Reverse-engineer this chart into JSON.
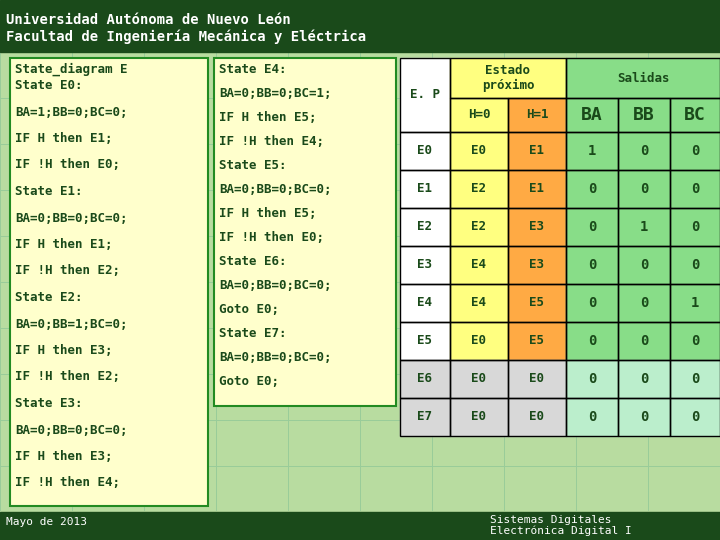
{
  "header_line1": "Universidad Autónoma de Nuevo León",
  "header_line2": "Facultad de Ingeniería Mecánica y Eléctrica",
  "header_bg": "#1a4a1a",
  "header_text_color": "#ffffff",
  "bg_color": "#b8dca0",
  "footer_line1": "Sistemas Digitales",
  "footer_line2": "Electrónica Digital I",
  "footer_date": "Mayo de 2013",
  "left_box_title": "State_diagram E",
  "left_box_lines": [
    "State E0:",
    "BA=1;BB=0;BC=0;",
    "IF H then E1;",
    "IF !H then E0;",
    "State E1:",
    "BA=0;BB=0;BC=0;",
    "IF H then E1;",
    "IF !H then E2;",
    "State E2:",
    "BA=0;BB=1;BC=0;",
    "IF H then E3;",
    "IF !H then E2;",
    "State E3:",
    "BA=0;BB=0;BC=0;",
    "IF H then E3;",
    "IF !H then E4;"
  ],
  "mid_box_lines": [
    "State E4:",
    "BA=0;BB=0;BC=1;",
    "IF H then E5;",
    "IF !H then E4;",
    "State E5:",
    "BA=0;BB=0;BC=0;",
    "IF H then E5;",
    "IF !H then E0;",
    "State E6:",
    "BA=0;BB=0;BC=0;",
    "Goto E0;",
    "State E7:",
    "BA=0;BB=0;BC=0;",
    "Goto E0;"
  ],
  "left_box_bg": "#ffffcc",
  "left_box_border": "#228B22",
  "table_ep_header": "E. P",
  "table_estado_header": "Estado\npróximo",
  "table_salidas_header": "Salidas",
  "table_h0_header": "H=0",
  "table_h1_header": "H=1",
  "table_ba_header": "BA",
  "table_bb_header": "BB",
  "table_bc_header": "BC",
  "table_rows": [
    [
      "E0",
      "E0",
      "E1",
      "1",
      "0",
      "0"
    ],
    [
      "E1",
      "E2",
      "E1",
      "0",
      "0",
      "0"
    ],
    [
      "E2",
      "E2",
      "E3",
      "0",
      "1",
      "0"
    ],
    [
      "E3",
      "E4",
      "E3",
      "0",
      "0",
      "0"
    ],
    [
      "E4",
      "E4",
      "E5",
      "0",
      "0",
      "1"
    ],
    [
      "E5",
      "E0",
      "E5",
      "0",
      "0",
      "0"
    ],
    [
      "E6",
      "E0",
      "E0",
      "0",
      "0",
      "0"
    ],
    [
      "E7",
      "E0",
      "E0",
      "0",
      "0",
      "0"
    ]
  ],
  "color_yellow": "#ffff80",
  "color_orange": "#ffaa44",
  "color_green_light": "#88dd88",
  "color_green_lighter": "#aaeebb",
  "color_white": "#ffffff",
  "color_light_gray": "#d8d8d8",
  "color_light_green_sal": "#bbeecc",
  "color_dark_green_text": "#1a4a1a",
  "table_border": "#000000",
  "grid_color": "#99cc99"
}
